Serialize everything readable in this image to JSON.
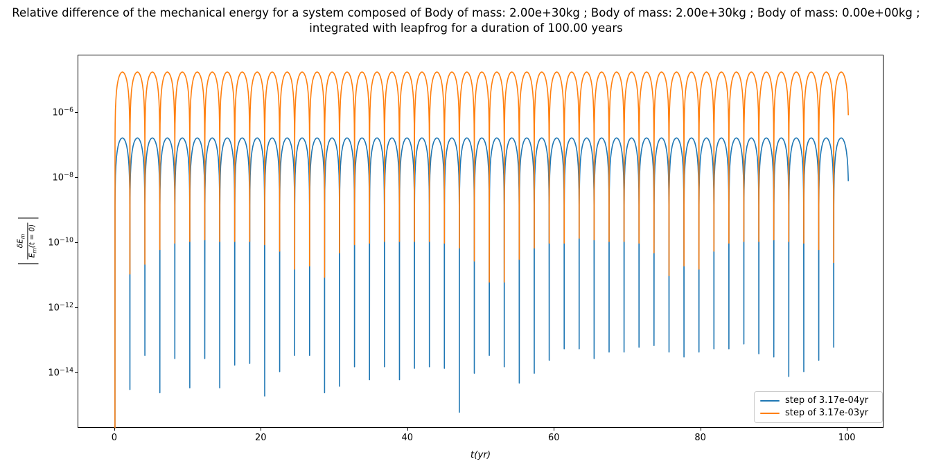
{
  "title": {
    "line1": "Relative difference of the mechanical energy for a system composed of Body of mass: 2.00e+30kg ; Body of mass: 2.00e+30kg ; Body of mass: 0.00e+00kg ;",
    "line2": "integrated with leapfrog for a duration of 100.00 years"
  },
  "chart_data": {
    "type": "line",
    "xlabel": "t(yr)",
    "ylabel": "|δEm/Em(t = 0)|",
    "ylabel_parts": {
      "bar": "|",
      "num_main": "δE",
      "num_sub": "m",
      "den_main": "E",
      "den_sub": "m",
      "den_rest": "(t = 0)"
    },
    "x_ticks": [
      0,
      20,
      40,
      60,
      80,
      100
    ],
    "y_tick_exponents": [
      -6,
      -8,
      -10,
      -12,
      -14
    ],
    "xlim": [
      -5,
      105
    ],
    "ylim_log10": [
      -15.7,
      -4.234
    ],
    "grid": false,
    "yscale": "log",
    "legend": {
      "location": "lower right"
    },
    "series": [
      {
        "name": "step of 3.17e-04yr",
        "color": "#1f77b4",
        "period_yr": 2.044,
        "t_max": 100,
        "peak_log10": -6.77,
        "shape_exponent": 1.2,
        "start_log10": -16.5,
        "end_phase": 0.975,
        "dip_log10": [
          -14.5,
          -13.45,
          -14.6,
          -13.55,
          -14.45,
          -13.55,
          -14.45,
          -13.75,
          -13.7,
          -14.7,
          -13.95,
          -13.45,
          -13.45,
          -14.6,
          -14.4,
          -13.8,
          -14.2,
          -13.8,
          -14.2,
          -13.85,
          -13.8,
          -13.85,
          -15.2,
          -14.0,
          -13.45,
          -13.8,
          -14.3,
          -14.0,
          -13.6,
          -13.25,
          -13.25,
          -13.55,
          -13.35,
          -13.35,
          -13.2,
          -13.15,
          -13.35,
          -13.5,
          -13.35,
          -13.25,
          -13.25,
          -13.1,
          -13.4,
          -13.5,
          -14.1,
          -13.95,
          -13.6,
          -13.2
        ]
      },
      {
        "name": "step of 3.17e-03yr",
        "color": "#ff7f0e",
        "period_yr": 2.044,
        "t_max": 100,
        "peak_log10": -4.745,
        "shape_exponent": 1.2,
        "start_log10": -16.5,
        "end_phase": 0.975,
        "dip_log10": [
          -10.95,
          -10.65,
          -10.2,
          -10.0,
          -9.95,
          -9.9,
          -9.95,
          -9.95,
          -9.95,
          -10.05,
          -10.25,
          -10.8,
          -10.7,
          -11.05,
          -10.3,
          -10.05,
          -10.0,
          -9.95,
          -9.95,
          -9.95,
          -9.95,
          -10.0,
          -10.15,
          -10.55,
          -11.2,
          -11.2,
          -10.5,
          -10.15,
          -10.0,
          -10.0,
          -9.85,
          -9.9,
          -9.95,
          -9.95,
          -10.0,
          -10.3,
          -11.0,
          -10.7,
          -10.8,
          -10.25,
          -10.0,
          -9.95,
          -9.95,
          -9.9,
          -9.95,
          -10.0,
          -10.2,
          -10.6
        ]
      }
    ]
  }
}
